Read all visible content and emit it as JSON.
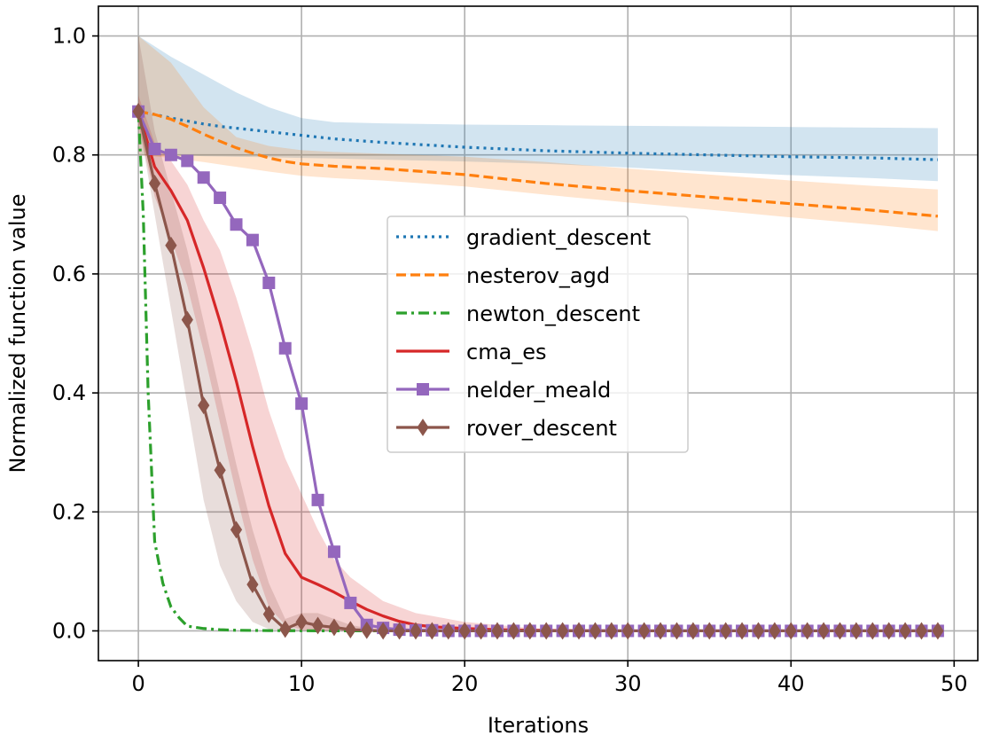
{
  "chart_data": {
    "type": "line",
    "title": "",
    "xlabel": "Iterations",
    "ylabel": "Normalized function value",
    "xlim": [
      -2.45,
      51.45
    ],
    "ylim": [
      -0.05,
      1.05
    ],
    "xticks": [
      0,
      10,
      20,
      30,
      40,
      50
    ],
    "yticks": [
      0.0,
      0.2,
      0.4,
      0.6,
      0.8,
      1.0
    ],
    "xtick_labels": [
      "0",
      "10",
      "20",
      "30",
      "40",
      "50"
    ],
    "ytick_labels": [
      "0.0",
      "0.2",
      "0.4",
      "0.6",
      "0.8",
      "1.0"
    ],
    "grid": true,
    "legend_position": "center",
    "series": [
      {
        "name": "gradient_descent",
        "label": "gradient_descent",
        "color": "#1f77b4",
        "style": "dotted",
        "marker": "none",
        "x": [
          0,
          1,
          2,
          3,
          4,
          5,
          6,
          8,
          10,
          12,
          15,
          20,
          25,
          30,
          35,
          40,
          45,
          49
        ],
        "y": [
          0.873,
          0.868,
          0.862,
          0.857,
          0.852,
          0.848,
          0.845,
          0.839,
          0.833,
          0.827,
          0.821,
          0.813,
          0.807,
          0.803,
          0.8,
          0.797,
          0.795,
          0.792
        ],
        "band_x": [
          0,
          2,
          4,
          6,
          8,
          10,
          12,
          15,
          20,
          25,
          30,
          35,
          40,
          45,
          49
        ],
        "band_lower": [
          0.8,
          0.8,
          0.798,
          0.797,
          0.796,
          0.795,
          0.794,
          0.792,
          0.789,
          0.785,
          0.779,
          0.772,
          0.766,
          0.761,
          0.756
        ],
        "band_upper": [
          1.0,
          0.965,
          0.935,
          0.905,
          0.88,
          0.862,
          0.855,
          0.853,
          0.851,
          0.85,
          0.849,
          0.848,
          0.847,
          0.846,
          0.845
        ]
      },
      {
        "name": "nesterov_agd",
        "label": "nesterov_agd",
        "color": "#ff7f0e",
        "style": "dashed",
        "marker": "none",
        "x": [
          0,
          1,
          2,
          3,
          4,
          5,
          6,
          7,
          8,
          9,
          10,
          12,
          15,
          20,
          25,
          30,
          35,
          40,
          45,
          49
        ],
        "y": [
          0.873,
          0.868,
          0.86,
          0.848,
          0.835,
          0.823,
          0.812,
          0.803,
          0.795,
          0.789,
          0.785,
          0.781,
          0.777,
          0.767,
          0.752,
          0.74,
          0.729,
          0.718,
          0.707,
          0.697
        ],
        "band_x": [
          0,
          2,
          4,
          6,
          8,
          10,
          12,
          15,
          20,
          25,
          30,
          35,
          40,
          45,
          49
        ],
        "band_lower": [
          0.8,
          0.795,
          0.788,
          0.78,
          0.772,
          0.765,
          0.761,
          0.757,
          0.747,
          0.733,
          0.72,
          0.708,
          0.695,
          0.683,
          0.672
        ],
        "band_upper": [
          1.0,
          0.955,
          0.88,
          0.83,
          0.815,
          0.808,
          0.805,
          0.802,
          0.797,
          0.788,
          0.777,
          0.767,
          0.757,
          0.748,
          0.742
        ]
      },
      {
        "name": "newton_descent",
        "label": "newton_descent",
        "color": "#2ca02c",
        "style": "dashdot",
        "marker": "none",
        "x": [
          0,
          0.3,
          0.6,
          1,
          1.5,
          2,
          2.5,
          3,
          4,
          5,
          6,
          8,
          10,
          15,
          20,
          30,
          40,
          49
        ],
        "y": [
          0.873,
          0.7,
          0.4,
          0.15,
          0.08,
          0.04,
          0.022,
          0.008,
          0.004,
          0.002,
          0.001,
          0.0005,
          0.0002,
          0,
          0,
          0,
          0,
          0
        ]
      },
      {
        "name": "cma_es",
        "label": "cma_es",
        "color": "#d62728",
        "style": "solid",
        "marker": "none",
        "x": [
          0,
          1,
          2,
          3,
          4,
          5,
          6,
          7,
          8,
          9,
          10,
          11,
          12,
          13,
          14,
          15,
          16,
          17,
          18,
          20,
          22,
          24,
          26,
          30,
          35,
          40,
          45,
          49
        ],
        "y": [
          0.873,
          0.78,
          0.74,
          0.69,
          0.61,
          0.52,
          0.42,
          0.31,
          0.21,
          0.13,
          0.09,
          0.078,
          0.065,
          0.05,
          0.036,
          0.025,
          0.016,
          0.01,
          0.007,
          0.004,
          0.002,
          0.001,
          0.0005,
          0,
          0,
          0,
          0,
          0
        ],
        "band_x": [
          0,
          1,
          2,
          3,
          4,
          5,
          6,
          7,
          8,
          9,
          10,
          11,
          12,
          13,
          14,
          15,
          16,
          17,
          18,
          20,
          22,
          24,
          26,
          30,
          35,
          40,
          45,
          49
        ],
        "band_lower": [
          0.85,
          0.73,
          0.66,
          0.58,
          0.47,
          0.35,
          0.23,
          0.12,
          0.04,
          0.01,
          0.002,
          0,
          0,
          0,
          0,
          0,
          0,
          0,
          0,
          0,
          0,
          0,
          0,
          0,
          0,
          0,
          0,
          0
        ],
        "band_upper": [
          0.9,
          0.82,
          0.79,
          0.75,
          0.69,
          0.64,
          0.56,
          0.47,
          0.37,
          0.29,
          0.23,
          0.17,
          0.12,
          0.09,
          0.07,
          0.05,
          0.04,
          0.03,
          0.025,
          0.015,
          0.01,
          0.005,
          0.002,
          0,
          0,
          0,
          0,
          0
        ]
      },
      {
        "name": "nelder_meald",
        "label": "nelder_meald",
        "color": "#9467bd",
        "style": "solid",
        "marker": "square",
        "x": [
          0,
          1,
          2,
          3,
          4,
          5,
          6,
          7,
          8,
          9,
          10,
          11,
          12,
          13,
          14,
          15,
          16,
          17,
          18,
          19,
          20,
          21,
          22,
          23,
          24,
          25,
          26,
          27,
          28,
          29,
          30,
          31,
          32,
          33,
          34,
          35,
          36,
          37,
          38,
          39,
          40,
          41,
          42,
          43,
          44,
          45,
          46,
          47,
          48,
          49
        ],
        "y": [
          0.873,
          0.81,
          0.8,
          0.79,
          0.762,
          0.728,
          0.683,
          0.657,
          0.585,
          0.475,
          0.382,
          0.22,
          0.133,
          0.047,
          0.01,
          0.005,
          0.002,
          0.001,
          0.001,
          0,
          0,
          0,
          0,
          0,
          0,
          0,
          0,
          0,
          0,
          0,
          0,
          0,
          0,
          0,
          0,
          0,
          0,
          0,
          0,
          0,
          0,
          0,
          0,
          0,
          0,
          0,
          0,
          0,
          0,
          0
        ]
      },
      {
        "name": "rover_descent",
        "label": "rover_descent",
        "color": "#8c564b",
        "style": "solid",
        "marker": "diamond",
        "x": [
          0,
          1,
          2,
          3,
          4,
          5,
          6,
          7,
          8,
          9,
          10,
          11,
          12,
          13,
          14,
          15,
          16,
          17,
          18,
          19,
          20,
          21,
          22,
          23,
          24,
          25,
          26,
          27,
          28,
          29,
          30,
          31,
          32,
          33,
          34,
          35,
          36,
          37,
          38,
          39,
          40,
          41,
          42,
          43,
          44,
          45,
          46,
          47,
          48,
          49
        ],
        "y": [
          0.873,
          0.752,
          0.648,
          0.523,
          0.379,
          0.27,
          0.17,
          0.078,
          0.028,
          0.003,
          0.015,
          0.009,
          0.006,
          0.002,
          0.001,
          0,
          0,
          0,
          0,
          0,
          0,
          0,
          0,
          0,
          0,
          0,
          0,
          0,
          0,
          0,
          0,
          0,
          0,
          0,
          0,
          0,
          0,
          0,
          0,
          0,
          0,
          0,
          0,
          0,
          0,
          0,
          0,
          0,
          0,
          0
        ],
        "band_x": [
          0,
          1,
          2,
          3,
          4,
          5,
          6,
          7,
          8,
          9,
          10,
          11,
          12,
          13,
          14,
          15,
          16,
          17,
          18,
          20,
          25,
          30,
          40,
          49
        ],
        "band_lower": [
          0.86,
          0.7,
          0.54,
          0.38,
          0.22,
          0.11,
          0.05,
          0.015,
          0.003,
          0,
          0,
          0,
          0,
          0,
          0,
          0,
          0,
          0,
          0,
          0,
          0,
          0,
          0,
          0
        ],
        "band_upper": [
          1.0,
          0.84,
          0.74,
          0.64,
          0.52,
          0.4,
          0.28,
          0.17,
          0.08,
          0.02,
          0.03,
          0.03,
          0.02,
          0.01,
          0.005,
          0,
          0,
          0,
          0,
          0,
          0,
          0,
          0,
          0
        ]
      }
    ]
  }
}
